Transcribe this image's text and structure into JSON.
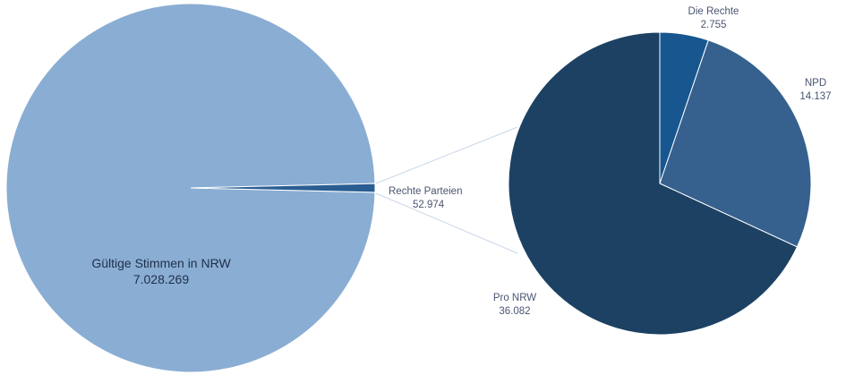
{
  "chart_data": [
    {
      "type": "pie",
      "name": "left",
      "slices": [
        {
          "label": "Gültige Stimmen in NRW",
          "value_text": "7.028.269",
          "value": 7028269,
          "color": "#8aadd3"
        },
        {
          "label": "Rechte Parteien",
          "value_text": "52.974",
          "value": 52974,
          "color": "#2a5d92"
        }
      ]
    },
    {
      "type": "pie",
      "name": "right",
      "slices": [
        {
          "label": "Die Rechte",
          "value_text": "2.755",
          "value": 2755,
          "color": "#17568f"
        },
        {
          "label": "NPD",
          "value_text": "14.137",
          "value": 14137,
          "color": "#36618e"
        },
        {
          "label": "Pro NRW",
          "value_text": "36.082",
          "value": 36082,
          "color": "#1c4163"
        }
      ]
    }
  ],
  "connector_color": "#c9d7e8"
}
